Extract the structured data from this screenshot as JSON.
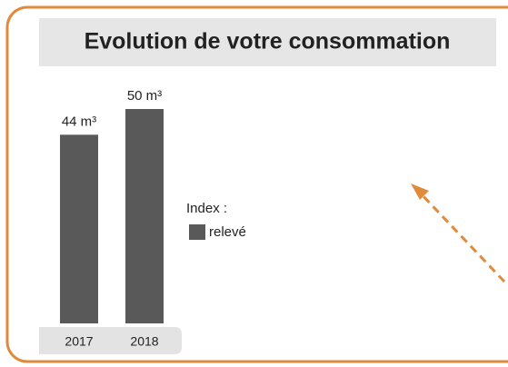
{
  "chart_data": {
    "type": "bar",
    "title": "Evolution de votre consommation",
    "categories": [
      "2017",
      "2018"
    ],
    "legend_title": "Index :",
    "series": [
      {
        "name": "relevé",
        "color": "#595959",
        "values": [
          44,
          50
        ],
        "value_labels": [
          "44 m³",
          "50 m³"
        ]
      }
    ]
  }
}
